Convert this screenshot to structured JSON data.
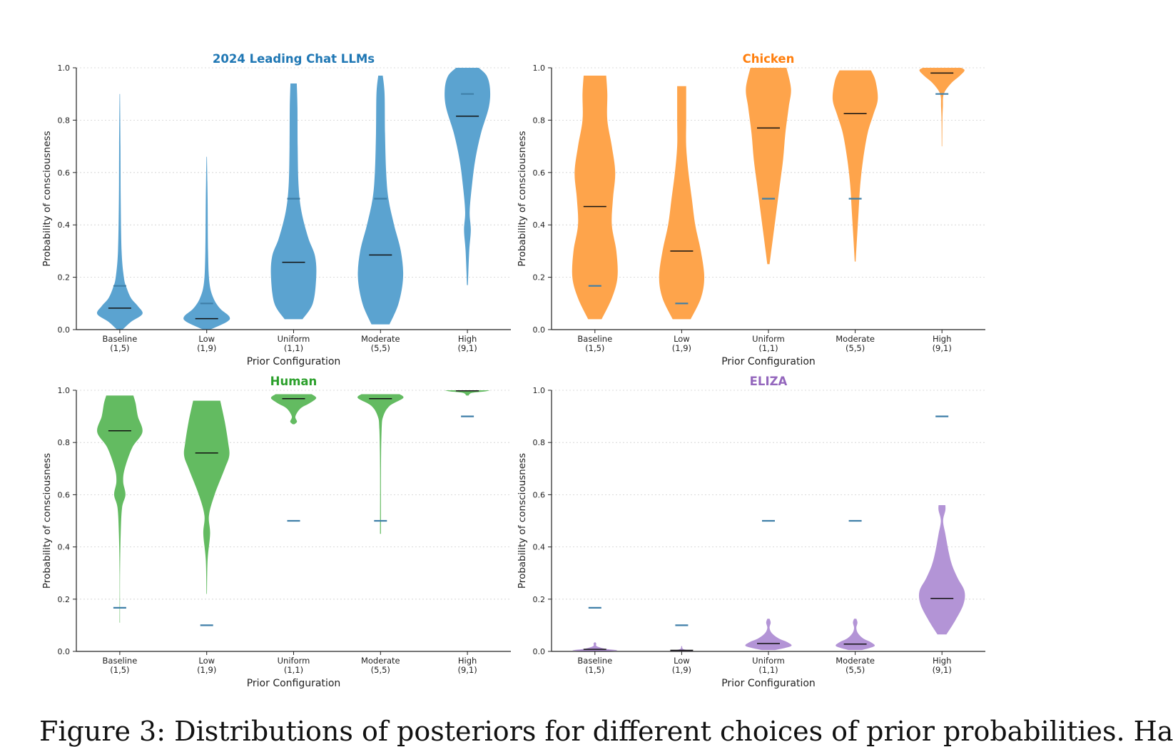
{
  "caption_fragment": "Figure 3: Distributions of posteriors for different choices of prior probabilities. Ha",
  "chart_data": [
    {
      "type": "violin",
      "title": "2024 Leading Chat LLMs",
      "title_color": "#1f77b4",
      "fill_color": "#5ba3d0",
      "ylabel": "Probability of consciousness",
      "xlabel": "Prior Configuration",
      "ylim": [
        0,
        1
      ],
      "yticks": [
        "0.0",
        "0.2",
        "0.4",
        "0.6",
        "0.8",
        "1.0"
      ],
      "grid": "horizontal dotted",
      "categories": [
        {
          "name": "Baseline",
          "params": "(1,5)",
          "prior": 0.167,
          "posterior_median": 0.082,
          "min": 0.0,
          "max": 0.9,
          "density": [
            [
              0.0,
              0.12
            ],
            [
              0.03,
              0.5
            ],
            [
              0.06,
              1.0
            ],
            [
              0.09,
              0.8
            ],
            [
              0.12,
              0.5
            ],
            [
              0.16,
              0.3
            ],
            [
              0.2,
              0.18
            ],
            [
              0.3,
              0.08
            ],
            [
              0.5,
              0.04
            ],
            [
              0.7,
              0.03
            ],
            [
              0.9,
              0.01
            ]
          ]
        },
        {
          "name": "Low",
          "params": "(1,9)",
          "prior": 0.1,
          "posterior_median": 0.042,
          "min": 0.0,
          "max": 0.66,
          "density": [
            [
              0.0,
              0.15
            ],
            [
              0.03,
              0.9
            ],
            [
              0.05,
              1.0
            ],
            [
              0.08,
              0.6
            ],
            [
              0.12,
              0.3
            ],
            [
              0.18,
              0.12
            ],
            [
              0.3,
              0.06
            ],
            [
              0.5,
              0.04
            ],
            [
              0.66,
              0.01
            ]
          ]
        },
        {
          "name": "Uniform",
          "params": "(1,1)",
          "prior": 0.5,
          "posterior_median": 0.257,
          "min": 0.04,
          "max": 0.94,
          "density": [
            [
              0.04,
              0.4
            ],
            [
              0.1,
              0.85
            ],
            [
              0.2,
              1.0
            ],
            [
              0.28,
              0.95
            ],
            [
              0.35,
              0.65
            ],
            [
              0.45,
              0.35
            ],
            [
              0.55,
              0.22
            ],
            [
              0.7,
              0.18
            ],
            [
              0.85,
              0.17
            ],
            [
              0.94,
              0.14
            ]
          ]
        },
        {
          "name": "Moderate",
          "params": "(5,5)",
          "prior": 0.5,
          "posterior_median": 0.285,
          "min": 0.02,
          "max": 0.97,
          "density": [
            [
              0.02,
              0.4
            ],
            [
              0.1,
              0.8
            ],
            [
              0.2,
              1.0
            ],
            [
              0.3,
              0.9
            ],
            [
              0.4,
              0.6
            ],
            [
              0.5,
              0.35
            ],
            [
              0.6,
              0.25
            ],
            [
              0.75,
              0.2
            ],
            [
              0.9,
              0.18
            ],
            [
              0.97,
              0.1
            ]
          ]
        },
        {
          "name": "High",
          "params": "(9,1)",
          "prior": 0.9,
          "posterior_median": 0.815,
          "min": 0.17,
          "max": 1.0,
          "density": [
            [
              0.17,
              0.02
            ],
            [
              0.3,
              0.08
            ],
            [
              0.38,
              0.15
            ],
            [
              0.45,
              0.1
            ],
            [
              0.55,
              0.2
            ],
            [
              0.65,
              0.35
            ],
            [
              0.75,
              0.6
            ],
            [
              0.85,
              0.95
            ],
            [
              0.92,
              1.0
            ],
            [
              0.97,
              0.85
            ],
            [
              1.0,
              0.5
            ]
          ]
        }
      ]
    },
    {
      "type": "violin",
      "title": "Chicken",
      "title_color": "#ff7f0e",
      "fill_color": "#fea44b",
      "ylabel": "Probability of consciousness",
      "xlabel": "Prior Configuration",
      "ylim": [
        0,
        1
      ],
      "yticks": [
        "0.0",
        "0.2",
        "0.4",
        "0.6",
        "0.8",
        "1.0"
      ],
      "grid": "horizontal dotted",
      "categories": [
        {
          "name": "Baseline",
          "params": "(1,5)",
          "prior": 0.167,
          "posterior_median": 0.47,
          "min": 0.04,
          "max": 0.97,
          "density": [
            [
              0.04,
              0.3
            ],
            [
              0.12,
              0.75
            ],
            [
              0.2,
              1.0
            ],
            [
              0.3,
              0.95
            ],
            [
              0.4,
              0.75
            ],
            [
              0.5,
              0.8
            ],
            [
              0.6,
              0.9
            ],
            [
              0.7,
              0.75
            ],
            [
              0.8,
              0.55
            ],
            [
              0.9,
              0.55
            ],
            [
              0.97,
              0.5
            ]
          ]
        },
        {
          "name": "Low",
          "params": "(1,9)",
          "prior": 0.1,
          "posterior_median": 0.3,
          "min": 0.04,
          "max": 0.93,
          "density": [
            [
              0.04,
              0.4
            ],
            [
              0.12,
              0.85
            ],
            [
              0.2,
              1.0
            ],
            [
              0.3,
              0.85
            ],
            [
              0.4,
              0.6
            ],
            [
              0.5,
              0.45
            ],
            [
              0.6,
              0.3
            ],
            [
              0.7,
              0.2
            ],
            [
              0.8,
              0.2
            ],
            [
              0.93,
              0.2
            ]
          ]
        },
        {
          "name": "Uniform",
          "params": "(1,1)",
          "prior": 0.5,
          "posterior_median": 0.77,
          "min": 0.25,
          "max": 1.0,
          "density": [
            [
              0.25,
              0.05
            ],
            [
              0.35,
              0.2
            ],
            [
              0.45,
              0.35
            ],
            [
              0.55,
              0.5
            ],
            [
              0.65,
              0.65
            ],
            [
              0.75,
              0.75
            ],
            [
              0.85,
              0.9
            ],
            [
              0.92,
              1.0
            ],
            [
              1.0,
              0.8
            ]
          ]
        },
        {
          "name": "Moderate",
          "params": "(5,5)",
          "prior": 0.5,
          "posterior_median": 0.825,
          "min": 0.26,
          "max": 0.99,
          "density": [
            [
              0.26,
              0.02
            ],
            [
              0.35,
              0.08
            ],
            [
              0.45,
              0.15
            ],
            [
              0.55,
              0.22
            ],
            [
              0.65,
              0.35
            ],
            [
              0.75,
              0.55
            ],
            [
              0.82,
              0.8
            ],
            [
              0.88,
              1.0
            ],
            [
              0.95,
              0.9
            ],
            [
              0.99,
              0.7
            ]
          ]
        },
        {
          "name": "High",
          "params": "(9,1)",
          "prior": 0.9,
          "posterior_median": 0.98,
          "min": 0.7,
          "max": 1.0,
          "density": [
            [
              0.7,
              0.01
            ],
            [
              0.8,
              0.02
            ],
            [
              0.85,
              0.04
            ],
            [
              0.9,
              0.08
            ],
            [
              0.94,
              0.4
            ],
            [
              0.97,
              0.8
            ],
            [
              0.99,
              1.0
            ],
            [
              1.0,
              0.85
            ]
          ]
        }
      ]
    },
    {
      "type": "violin",
      "title": "Human",
      "title_color": "#2ca02c",
      "fill_color": "#63bb61",
      "ylabel": "Probability of consciousness",
      "xlabel": "Prior Configuration",
      "ylim": [
        0,
        1
      ],
      "yticks": [
        "0.0",
        "0.2",
        "0.4",
        "0.6",
        "0.8",
        "1.0"
      ],
      "grid": "horizontal dotted",
      "categories": [
        {
          "name": "Baseline",
          "params": "(1,5)",
          "prior": 0.167,
          "posterior_median": 0.845,
          "min": 0.11,
          "max": 0.98,
          "density": [
            [
              0.11,
              0.01
            ],
            [
              0.3,
              0.01
            ],
            [
              0.45,
              0.04
            ],
            [
              0.55,
              0.1
            ],
            [
              0.6,
              0.25
            ],
            [
              0.65,
              0.15
            ],
            [
              0.7,
              0.22
            ],
            [
              0.78,
              0.55
            ],
            [
              0.84,
              1.0
            ],
            [
              0.9,
              0.8
            ],
            [
              0.95,
              0.7
            ],
            [
              0.98,
              0.6
            ]
          ]
        },
        {
          "name": "Low",
          "params": "(1,9)",
          "prior": 0.1,
          "posterior_median": 0.76,
          "min": 0.22,
          "max": 0.96,
          "density": [
            [
              0.22,
              0.01
            ],
            [
              0.35,
              0.04
            ],
            [
              0.45,
              0.15
            ],
            [
              0.52,
              0.1
            ],
            [
              0.6,
              0.35
            ],
            [
              0.7,
              0.8
            ],
            [
              0.75,
              1.0
            ],
            [
              0.8,
              0.95
            ],
            [
              0.88,
              0.8
            ],
            [
              0.96,
              0.6
            ]
          ]
        },
        {
          "name": "Uniform",
          "params": "(1,1)",
          "prior": 0.5,
          "posterior_median": 0.968,
          "min": 0.87,
          "max": 0.985,
          "density": [
            [
              0.87,
              0.04
            ],
            [
              0.88,
              0.15
            ],
            [
              0.9,
              0.08
            ],
            [
              0.93,
              0.3
            ],
            [
              0.95,
              0.7
            ],
            [
              0.97,
              1.0
            ],
            [
              0.985,
              0.8
            ]
          ]
        },
        {
          "name": "Moderate",
          "params": "(5,5)",
          "prior": 0.5,
          "posterior_median": 0.968,
          "min": 0.45,
          "max": 0.985,
          "density": [
            [
              0.45,
              0.02
            ],
            [
              0.7,
              0.02
            ],
            [
              0.85,
              0.05
            ],
            [
              0.9,
              0.12
            ],
            [
              0.94,
              0.4
            ],
            [
              0.97,
              1.0
            ],
            [
              0.985,
              0.85
            ]
          ]
        },
        {
          "name": "High",
          "params": "(9,1)",
          "prior": 0.9,
          "posterior_median": 0.998,
          "min": 0.98,
          "max": 1.0,
          "density": [
            [
              0.98,
              0.05
            ],
            [
              0.99,
              0.2
            ],
            [
              0.996,
              0.8
            ],
            [
              1.0,
              1.0
            ]
          ]
        }
      ]
    },
    {
      "type": "violin",
      "title": "ELIZA",
      "title_color": "#9467bd",
      "fill_color": "#b394d6",
      "ylabel": "Probability of consciousness",
      "xlabel": "Prior Configuration",
      "ylim": [
        0,
        1
      ],
      "yticks": [
        "0.0",
        "0.2",
        "0.4",
        "0.6",
        "0.8",
        "1.0"
      ],
      "grid": "horizontal dotted",
      "categories": [
        {
          "name": "Baseline",
          "params": "(1,5)",
          "prior": 0.167,
          "posterior_median": 0.008,
          "min": 0.0,
          "max": 0.035,
          "density": [
            [
              0.0,
              0.4
            ],
            [
              0.004,
              1.0
            ],
            [
              0.01,
              0.45
            ],
            [
              0.02,
              0.08
            ],
            [
              0.03,
              0.06
            ],
            [
              0.035,
              0.02
            ]
          ]
        },
        {
          "name": "Low",
          "params": "(1,9)",
          "prior": 0.1,
          "posterior_median": 0.004,
          "min": 0.0,
          "max": 0.02,
          "density": [
            [
              0.0,
              0.3
            ],
            [
              0.002,
              0.5
            ],
            [
              0.005,
              0.25
            ],
            [
              0.01,
              0.05
            ],
            [
              0.02,
              0.02
            ]
          ]
        },
        {
          "name": "Uniform",
          "params": "(1,1)",
          "prior": 0.5,
          "posterior_median": 0.03,
          "min": 0.005,
          "max": 0.125,
          "density": [
            [
              0.005,
              0.3
            ],
            [
              0.02,
              1.0
            ],
            [
              0.035,
              0.85
            ],
            [
              0.05,
              0.45
            ],
            [
              0.07,
              0.15
            ],
            [
              0.09,
              0.05
            ],
            [
              0.11,
              0.1
            ],
            [
              0.125,
              0.05
            ]
          ]
        },
        {
          "name": "Moderate",
          "params": "(5,5)",
          "prior": 0.5,
          "posterior_median": 0.028,
          "min": 0.005,
          "max": 0.125,
          "density": [
            [
              0.005,
              0.3
            ],
            [
              0.02,
              0.85
            ],
            [
              0.035,
              0.7
            ],
            [
              0.05,
              0.35
            ],
            [
              0.07,
              0.12
            ],
            [
              0.09,
              0.05
            ],
            [
              0.11,
              0.1
            ],
            [
              0.125,
              0.05
            ]
          ]
        },
        {
          "name": "High",
          "params": "(9,1)",
          "prior": 0.9,
          "posterior_median": 0.203,
          "min": 0.065,
          "max": 0.56,
          "density": [
            [
              0.065,
              0.2
            ],
            [
              0.12,
              0.6
            ],
            [
              0.18,
              0.95
            ],
            [
              0.23,
              1.0
            ],
            [
              0.28,
              0.7
            ],
            [
              0.33,
              0.45
            ],
            [
              0.38,
              0.3
            ],
            [
              0.45,
              0.15
            ],
            [
              0.5,
              0.05
            ],
            [
              0.54,
              0.15
            ],
            [
              0.56,
              0.15
            ]
          ]
        }
      ]
    }
  ]
}
